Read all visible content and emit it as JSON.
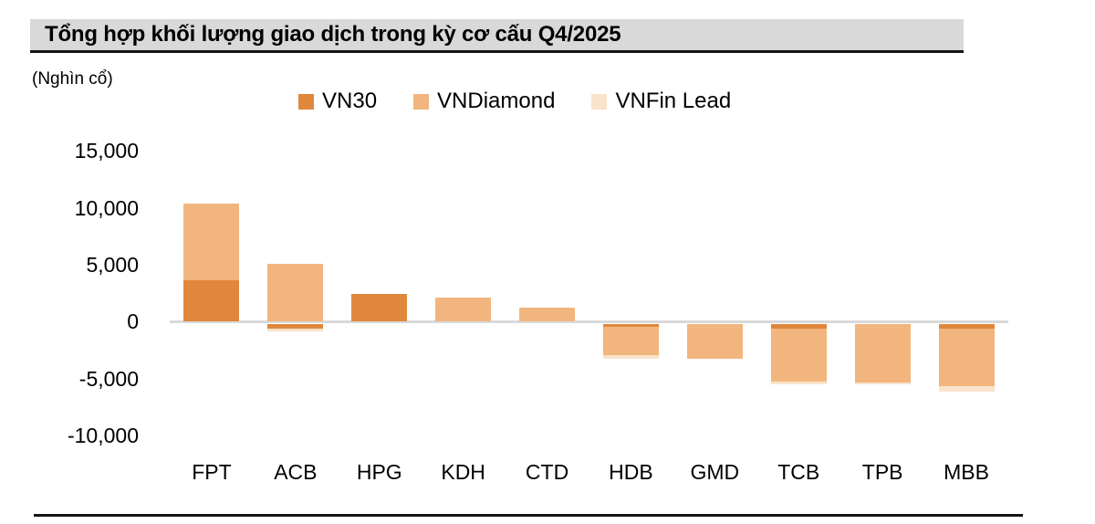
{
  "chart_data": {
    "type": "bar",
    "stacked": true,
    "title": "Tổng hợp khối lượng giao dịch trong kỳ cơ cấu Q4/2025",
    "unit_label": "(Nghìn cổ)",
    "legend_position": "top",
    "grid": false,
    "categories": [
      "FPT",
      "ACB",
      "HPG",
      "KDH",
      "CTD",
      "HDB",
      "GMD",
      "TCB",
      "TPB",
      "MBB"
    ],
    "series": [
      {
        "name": "VN30",
        "color": "#E0873C",
        "values": [
          3600,
          -400,
          2400,
          0,
          0,
          -200,
          0,
          -350,
          0,
          -400
        ]
      },
      {
        "name": "VNDiamond",
        "color": "#F2B57E",
        "values": [
          6800,
          5100,
          0,
          2100,
          1250,
          -2500,
          -3000,
          -4700,
          -5100,
          -5000
        ]
      },
      {
        "name": "VNFin Lead",
        "color": "#F9E3CB",
        "values": [
          0,
          -250,
          0,
          0,
          0,
          -300,
          0,
          -200,
          -150,
          -500
        ]
      }
    ],
    "totals_by_category": [
      10400,
      4450,
      2400,
      2100,
      1250,
      -3000,
      -3000,
      -5250,
      -5250,
      -5900
    ],
    "ylim": [
      -10000,
      15000
    ],
    "yticks": [
      {
        "label": "15,000",
        "value": 15000
      },
      {
        "label": "10,000",
        "value": 10000
      },
      {
        "label": "5,000",
        "value": 5000
      },
      {
        "label": "0",
        "value": 0
      },
      {
        "label": "-5,000",
        "value": -5000
      },
      {
        "label": "-10,000",
        "value": -10000
      }
    ]
  },
  "colors": {
    "title_bar_bg": "#D9D9D9",
    "rule": "#141414",
    "zero_line": "#D9D9D9"
  }
}
